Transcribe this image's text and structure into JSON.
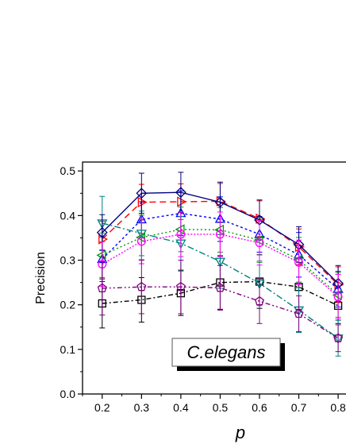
{
  "chart_data": {
    "type": "line",
    "title": "",
    "xlabel": "p",
    "ylabel": "Precision",
    "xlim": [
      0.15,
      0.82
    ],
    "ylim": [
      0.0,
      0.52
    ],
    "grid": false,
    "x": [
      0.2,
      0.3,
      0.4,
      0.5,
      0.6,
      0.7,
      0.8
    ],
    "x_ticks": [
      "0.2",
      "0.3",
      "0.4",
      "0.5",
      "0.6",
      "0.7",
      "0.8"
    ],
    "y_ticks": [
      "0.0",
      "0.1",
      "0.2",
      "0.3",
      "0.4",
      "0.5"
    ],
    "annotation": "C.elegans",
    "series": [
      {
        "color": "#000000",
        "marker": "square",
        "dash": "6,3,2,3",
        "values": [
          0.203,
          0.211,
          0.226,
          0.25,
          0.252,
          0.24,
          0.198
        ],
        "errors": [
          0.055,
          0.05,
          0.05,
          0.06,
          0.06,
          0.05,
          0.04
        ]
      },
      {
        "color": "#ff0000",
        "marker": "triangle-right",
        "dash": "8,5",
        "values": [
          0.347,
          0.43,
          0.431,
          0.432,
          0.393,
          0.33,
          0.245
        ],
        "errors": [
          0.04,
          0.04,
          0.04,
          0.04,
          0.04,
          0.04,
          0.04
        ]
      },
      {
        "color": "#0000ff",
        "marker": "triangle-up",
        "dash": "3,3",
        "values": [
          0.302,
          0.391,
          0.405,
          0.392,
          0.358,
          0.312,
          0.235
        ],
        "errors": [
          0.05,
          0.04,
          0.05,
          0.05,
          0.04,
          0.05,
          0.04
        ]
      },
      {
        "color": "#008080",
        "marker": "triangle-down",
        "dash": "8,3,2,3",
        "values": [
          0.383,
          0.36,
          0.338,
          0.297,
          0.248,
          0.188,
          0.125
        ],
        "errors": [
          0.06,
          0.05,
          0.06,
          0.06,
          0.05,
          0.05,
          0.04
        ]
      },
      {
        "color": "#009900",
        "marker": "triangle-left",
        "dash": "2,3",
        "values": [
          0.311,
          0.351,
          0.369,
          0.368,
          0.345,
          0.301,
          0.222
        ],
        "errors": [
          0.05,
          0.05,
          0.05,
          0.05,
          0.05,
          0.05,
          0.05
        ]
      },
      {
        "color": "#000080",
        "marker": "diamond",
        "dash": "",
        "values": [
          0.362,
          0.45,
          0.452,
          0.43,
          0.39,
          0.335,
          0.248
        ],
        "errors": [
          0.04,
          0.045,
          0.045,
          0.045,
          0.045,
          0.04,
          0.04
        ]
      },
      {
        "color": "#ff00ff",
        "marker": "circle",
        "dash": "2,2",
        "values": [
          0.291,
          0.342,
          0.358,
          0.358,
          0.339,
          0.295,
          0.218
        ],
        "errors": [
          0.05,
          0.05,
          0.05,
          0.05,
          0.05,
          0.05,
          0.05
        ]
      },
      {
        "color": "#800080",
        "marker": "pentagon",
        "dash": "6,3,2,3,2,3",
        "values": [
          0.237,
          0.24,
          0.24,
          0.238,
          0.208,
          0.18,
          0.125
        ],
        "errors": [
          0.06,
          0.06,
          0.06,
          0.05,
          0.05,
          0.04,
          0.03
        ]
      }
    ]
  }
}
